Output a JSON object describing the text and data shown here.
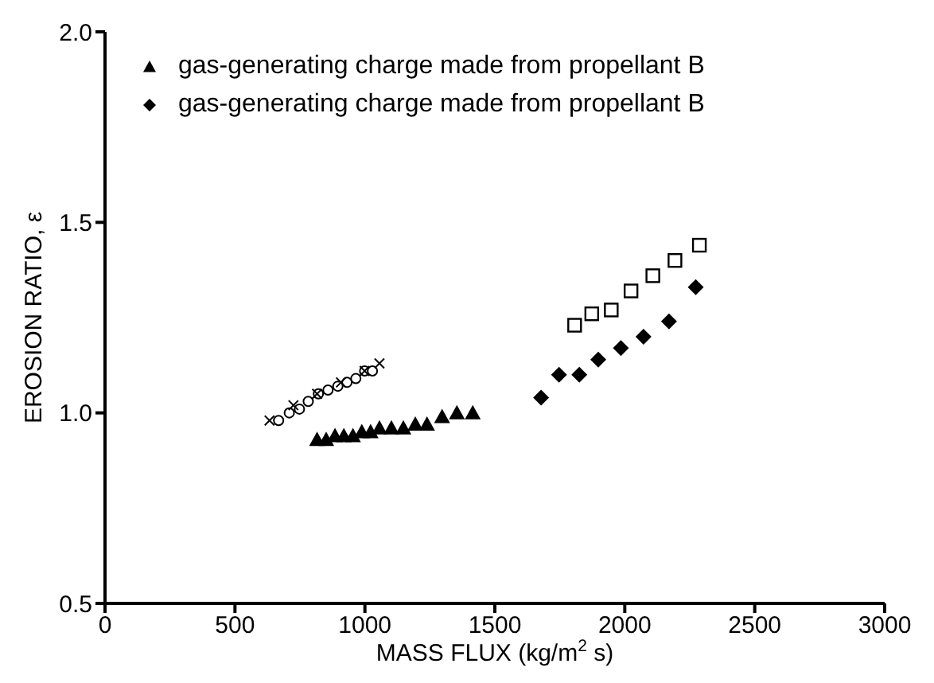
{
  "chart_data": {
    "type": "scatter",
    "xlabel": "MASS FLUX (kg/m$^{2}$ s)",
    "ylabel": "EROSION RATIO, ε",
    "xlim": [
      0,
      3000
    ],
    "xticks": [
      0,
      500,
      1000,
      1500,
      2000,
      2500,
      3000
    ],
    "ylim": [
      0.5,
      2.0
    ],
    "yticks": [
      0.5,
      {
        "value": 1,
        "label": "1.0"
      },
      1.5,
      {
        "value": 2,
        "label": "2.0"
      }
    ],
    "grid": false,
    "legend": "top left",
    "series": [
      {
        "name": "gas-generating charge made from propellant B",
        "color": "#000000",
        "marker": "triangle",
        "x": [
          816,
          851,
          885,
          919,
          954,
          988,
          1022,
          1056,
          1102,
          1148,
          1194,
          1239,
          1297,
          1354,
          1415
        ],
        "values": [
          0.93,
          0.93,
          0.94,
          0.94,
          0.94,
          0.95,
          0.95,
          0.96,
          0.96,
          0.96,
          0.97,
          0.97,
          0.99,
          1.0,
          1.0
        ]
      },
      {
        "name": "gas-generating charge made from propellant B",
        "color": "#000000",
        "marker": "diamond",
        "x": [
          1678,
          1747,
          1825,
          1898,
          1985,
          2072,
          2170,
          2273
        ],
        "values": [
          1.04,
          1.1,
          1.1,
          1.14,
          1.17,
          1.2,
          1.24,
          1.33
        ]
      },
      {
        "color": "#000000",
        "marker": "square",
        "x": [
          1807,
          1873,
          1948,
          2024,
          2108,
          2193,
          2287
        ],
        "values": [
          1.23,
          1.26,
          1.27,
          1.32,
          1.36,
          1.4,
          1.44
        ]
      },
      {
        "color": "#000000",
        "marker": "circle",
        "x": [
          668,
          709,
          748,
          782,
          821,
          858,
          896,
          931,
          965,
          999,
          1029
        ],
        "values": [
          0.98,
          1.0,
          1.01,
          1.03,
          1.05,
          1.06,
          1.07,
          1.08,
          1.09,
          1.11,
          1.11
        ]
      },
      {
        "color": "#000000",
        "marker": "cross",
        "x": [
          633,
          725,
          816,
          908,
          999,
          1056
        ],
        "values": [
          0.98,
          1.02,
          1.05,
          1.08,
          1.11,
          1.13
        ]
      }
    ]
  }
}
